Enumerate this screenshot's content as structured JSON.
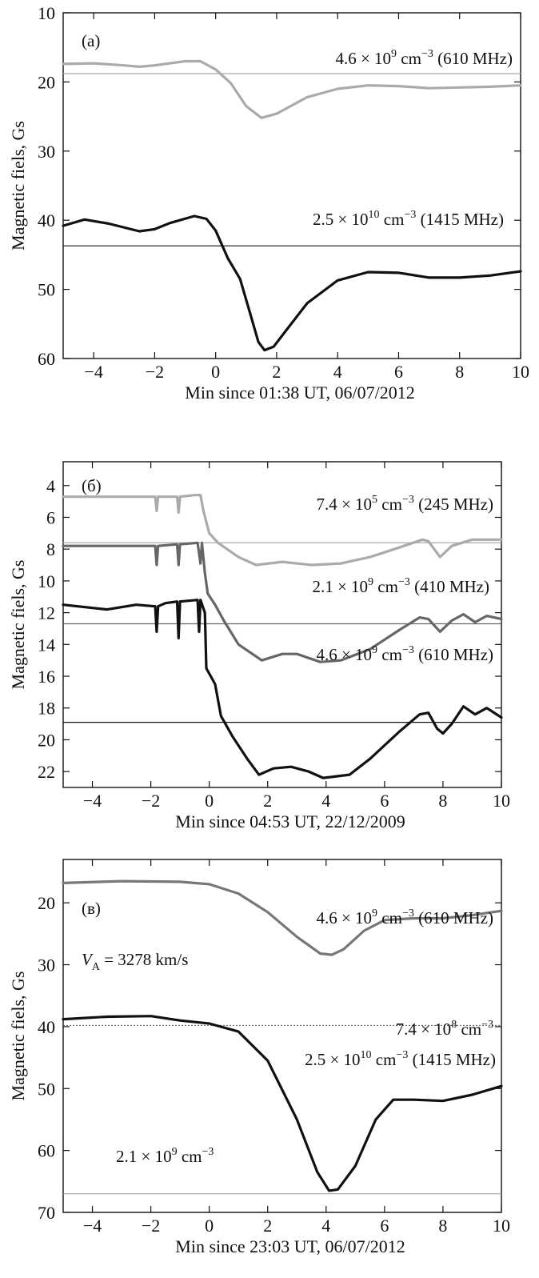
{
  "chart_data": [
    {
      "type": "line",
      "panel_label": "(a)",
      "xlabel": "Min since 01:38 UT, 06/07/2012",
      "ylabel": "Magnetic fiels, Gs",
      "xlim": [
        -5,
        10
      ],
      "ylim": [
        60,
        10
      ],
      "y_inverted": true,
      "xticks": [
        -4,
        -2,
        0,
        2,
        4,
        6,
        8,
        10
      ],
      "yticks": [
        10,
        20,
        30,
        40,
        50,
        60
      ],
      "series": [
        {
          "annotation": {
            "pre": "4.6 × 10",
            "sup": "9",
            "post": " cm",
            "sup2": "−3",
            "tail": " (610 MHz)"
          },
          "color": "#aaaaaa",
          "ref_level": 18.8,
          "points": [
            [
              -5,
              17.4
            ],
            [
              -4,
              17.3
            ],
            [
              -3,
              17.6
            ],
            [
              -2.5,
              17.8
            ],
            [
              -2,
              17.6
            ],
            [
              -1,
              17.0
            ],
            [
              -0.5,
              17.0
            ],
            [
              0,
              18.2
            ],
            [
              0.5,
              20.2
            ],
            [
              1,
              23.5
            ],
            [
              1.5,
              25.2
            ],
            [
              2,
              24.6
            ],
            [
              3,
              22.2
            ],
            [
              4,
              21.0
            ],
            [
              5,
              20.5
            ],
            [
              6,
              20.6
            ],
            [
              7,
              20.9
            ],
            [
              8,
              20.8
            ],
            [
              9,
              20.7
            ],
            [
              10,
              20.5
            ]
          ]
        },
        {
          "annotation": {
            "pre": "2.5 × 10",
            "sup": "10",
            "post": " cm",
            "sup2": "−3",
            "tail": " (1415 MHz)"
          },
          "color": "#111111",
          "ref_level": 43.7,
          "points": [
            [
              -5,
              40.8
            ],
            [
              -4.3,
              39.9
            ],
            [
              -3.5,
              40.5
            ],
            [
              -2.5,
              41.6
            ],
            [
              -2,
              41.3
            ],
            [
              -1.5,
              40.4
            ],
            [
              -0.7,
              39.4
            ],
            [
              -0.3,
              39.8
            ],
            [
              0,
              41.5
            ],
            [
              0.4,
              45.5
            ],
            [
              0.8,
              48.5
            ],
            [
              1.1,
              53.0
            ],
            [
              1.4,
              57.6
            ],
            [
              1.6,
              58.8
            ],
            [
              1.9,
              58.3
            ],
            [
              2.3,
              56.0
            ],
            [
              3,
              52.0
            ],
            [
              4,
              48.7
            ],
            [
              5,
              47.5
            ],
            [
              6,
              47.6
            ],
            [
              7,
              48.3
            ],
            [
              8,
              48.3
            ],
            [
              9,
              48.0
            ],
            [
              10,
              47.4
            ]
          ]
        }
      ]
    },
    {
      "type": "line",
      "panel_label": "(б)",
      "xlabel": "Min since 04:53 UT, 22/12/2009",
      "ylabel": "Magnetic fiels, Gs",
      "xlim": [
        -5,
        10
      ],
      "ylim": [
        23,
        2.5
      ],
      "y_inverted": true,
      "xticks": [
        -4,
        -2,
        0,
        2,
        4,
        6,
        8,
        10
      ],
      "yticks": [
        4,
        6,
        8,
        10,
        12,
        14,
        16,
        18,
        20,
        22
      ],
      "series": [
        {
          "annotation": {
            "pre": "7.4 × 10",
            "sup": "5",
            "post": " cm",
            "sup2": "−3",
            "tail": " (245 MHz)"
          },
          "color": "#aaaaaa",
          "ref_level": 7.6,
          "points": [
            [
              -5,
              4.7
            ],
            [
              -3,
              4.7
            ],
            [
              -1.85,
              4.7
            ],
            [
              -1.8,
              5.6
            ],
            [
              -1.75,
              4.7
            ],
            [
              -1.1,
              4.7
            ],
            [
              -1.05,
              5.7
            ],
            [
              -1.0,
              4.7
            ],
            [
              -0.5,
              4.6
            ],
            [
              -0.3,
              4.6
            ],
            [
              -0.2,
              5.6
            ],
            [
              0,
              7.0
            ],
            [
              0.3,
              7.6
            ],
            [
              1,
              8.5
            ],
            [
              1.6,
              9.0
            ],
            [
              2.5,
              8.8
            ],
            [
              3.5,
              9.0
            ],
            [
              4.5,
              8.9
            ],
            [
              5.5,
              8.5
            ],
            [
              6.5,
              7.9
            ],
            [
              7.3,
              7.4
            ],
            [
              7.5,
              7.5
            ],
            [
              7.9,
              8.5
            ],
            [
              8.3,
              7.8
            ],
            [
              9,
              7.4
            ],
            [
              10,
              7.4
            ]
          ]
        },
        {
          "annotation": {
            "pre": "2.1 × 10",
            "sup": "9",
            "post": " cm",
            "sup2": "−3",
            "tail": " (410 MHz)"
          },
          "color": "#666666",
          "ref_level": 12.7,
          "points": [
            [
              -5,
              7.8
            ],
            [
              -3,
              7.8
            ],
            [
              -1.85,
              7.8
            ],
            [
              -1.8,
              9.0
            ],
            [
              -1.75,
              7.8
            ],
            [
              -1.1,
              7.7
            ],
            [
              -1.05,
              9.0
            ],
            [
              -1.0,
              7.7
            ],
            [
              -0.4,
              7.6
            ],
            [
              -0.3,
              8.9
            ],
            [
              -0.25,
              7.6
            ],
            [
              -0.15,
              9.5
            ],
            [
              -0.05,
              10.8
            ],
            [
              0.2,
              11.5
            ],
            [
              0.5,
              12.5
            ],
            [
              1,
              14.0
            ],
            [
              1.8,
              15.0
            ],
            [
              2.5,
              14.6
            ],
            [
              3,
              14.6
            ],
            [
              3.8,
              15.1
            ],
            [
              4.5,
              15.0
            ],
            [
              5.5,
              14.3
            ],
            [
              6.5,
              13.1
            ],
            [
              7.2,
              12.3
            ],
            [
              7.5,
              12.4
            ],
            [
              7.9,
              13.2
            ],
            [
              8.3,
              12.5
            ],
            [
              8.7,
              12.1
            ],
            [
              9.1,
              12.6
            ],
            [
              9.5,
              12.2
            ],
            [
              10,
              12.4
            ]
          ]
        },
        {
          "annotation": {
            "pre": "4.6 × 10",
            "sup": "9",
            "post": " cm",
            "sup2": "−3",
            "tail": " (610 MHz)"
          },
          "color": "#111111",
          "ref_level": 18.9,
          "points": [
            [
              -5,
              11.5
            ],
            [
              -3.5,
              11.8
            ],
            [
              -2.5,
              11.5
            ],
            [
              -1.85,
              11.6
            ],
            [
              -1.8,
              13.2
            ],
            [
              -1.75,
              11.6
            ],
            [
              -1.5,
              11.4
            ],
            [
              -1.1,
              11.3
            ],
            [
              -1.05,
              13.6
            ],
            [
              -1.0,
              11.3
            ],
            [
              -0.4,
              11.2
            ],
            [
              -0.35,
              13.2
            ],
            [
              -0.3,
              11.2
            ],
            [
              -0.15,
              12.0
            ],
            [
              -0.1,
              15.5
            ],
            [
              0.05,
              16.0
            ],
            [
              0.2,
              16.5
            ],
            [
              0.4,
              18.5
            ],
            [
              0.8,
              19.8
            ],
            [
              1.3,
              21.2
            ],
            [
              1.7,
              22.2
            ],
            [
              2.2,
              21.8
            ],
            [
              2.8,
              21.7
            ],
            [
              3.4,
              22.0
            ],
            [
              3.9,
              22.4
            ],
            [
              4.8,
              22.2
            ],
            [
              5.5,
              21.2
            ],
            [
              6.5,
              19.5
            ],
            [
              7.2,
              18.4
            ],
            [
              7.5,
              18.3
            ],
            [
              7.8,
              19.3
            ],
            [
              8,
              19.6
            ],
            [
              8.3,
              19.0
            ],
            [
              8.7,
              17.9
            ],
            [
              9.1,
              18.4
            ],
            [
              9.5,
              18.0
            ],
            [
              10,
              18.6
            ]
          ]
        }
      ]
    },
    {
      "type": "line",
      "panel_label": "(в)",
      "xlabel": "Min since 23:03 UT, 06/07/2012",
      "ylabel": "Magnetic fiels, Gs",
      "xlim": [
        -5,
        10
      ],
      "ylim": [
        70,
        13
      ],
      "y_inverted": true,
      "xticks": [
        -4,
        -2,
        0,
        2,
        4,
        6,
        8,
        10
      ],
      "yticks": [
        20,
        30,
        40,
        50,
        60,
        70
      ],
      "va_label": {
        "pre": "V",
        "sub": "A",
        "post": " = 3278 km/s"
      },
      "series": [
        {
          "annotation": {
            "pre": "4.6 × 10",
            "sup": "9",
            "post": " cm",
            "sup2": "−3",
            "tail": " (610 MHz)"
          },
          "color": "#777777",
          "points": [
            [
              -5,
              16.8
            ],
            [
              -3,
              16.5
            ],
            [
              -1,
              16.6
            ],
            [
              0,
              17.0
            ],
            [
              1,
              18.5
            ],
            [
              2,
              21.5
            ],
            [
              3,
              25.5
            ],
            [
              3.8,
              28.2
            ],
            [
              4.2,
              28.4
            ],
            [
              4.6,
              27.5
            ],
            [
              5.3,
              24.5
            ],
            [
              6,
              22.8
            ],
            [
              7,
              22.5
            ],
            [
              8,
              22.5
            ],
            [
              9,
              22.0
            ],
            [
              10,
              21.3
            ]
          ]
        },
        {
          "annotation": {
            "pre": "2.5 × 10",
            "sup": "10",
            "post": " cm",
            "sup2": "−3",
            "tail": " (1415 MHz)"
          },
          "color": "#111111",
          "points": [
            [
              -5,
              38.8
            ],
            [
              -3.5,
              38.4
            ],
            [
              -2,
              38.3
            ],
            [
              -1,
              39.0
            ],
            [
              0,
              39.5
            ],
            [
              1,
              40.8
            ],
            [
              2,
              45.5
            ],
            [
              3,
              55.0
            ],
            [
              3.7,
              63.5
            ],
            [
              4.1,
              66.5
            ],
            [
              4.4,
              66.3
            ],
            [
              5,
              62.5
            ],
            [
              5.7,
              55.0
            ],
            [
              6.3,
              51.8
            ],
            [
              7,
              51.8
            ],
            [
              8,
              52.0
            ],
            [
              9,
              51.0
            ],
            [
              10,
              49.6
            ]
          ]
        }
      ],
      "reference_lines": [
        {
          "label": {
            "pre": "7.4 × 10",
            "sup": "8",
            "post": " cm",
            "sup2": "−3"
          },
          "level": 39.8,
          "dashed": true
        },
        {
          "label": {
            "pre": "2.1 × 10",
            "sup": "9",
            "post": " cm",
            "sup2": "−3"
          },
          "level": 67.0,
          "dashed": false
        }
      ]
    }
  ]
}
